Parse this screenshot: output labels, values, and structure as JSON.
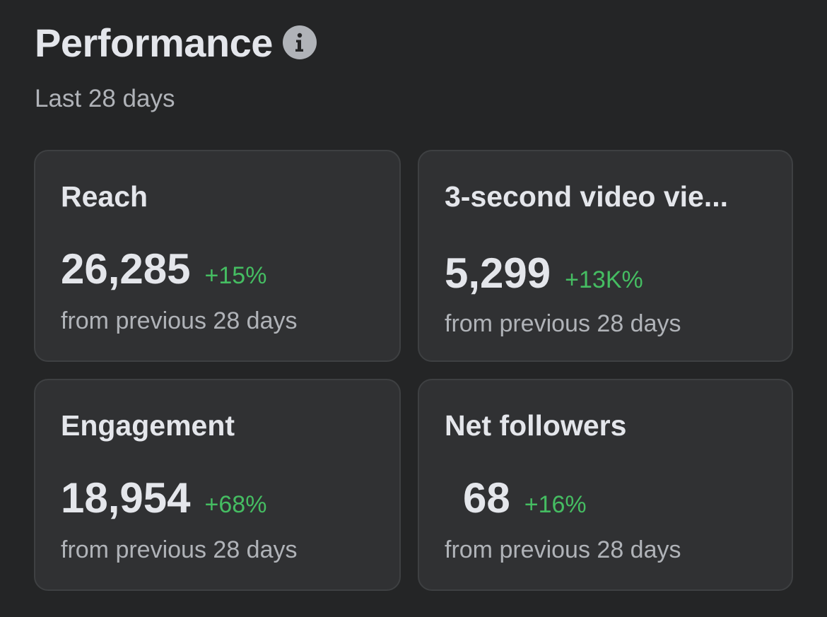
{
  "header": {
    "title": "Performance",
    "info_icon": "info-icon",
    "subtitle": "Last 28 days"
  },
  "colors": {
    "background": "#242526",
    "card": "#303133",
    "positive": "#45bd62"
  },
  "cards": [
    {
      "label": "Reach",
      "value": "26,285",
      "change": "+15%",
      "caption": "from previous 28 days"
    },
    {
      "label": "3-second video vie...",
      "value": "5,299",
      "change": "+13K%",
      "caption": "from previous 28 days"
    },
    {
      "label": "Engagement",
      "value": "18,954",
      "change": "+68%",
      "caption": "from previous 28 days"
    },
    {
      "label": "Net followers",
      "value": "68",
      "change": "+16%",
      "caption": "from previous 28 days"
    }
  ]
}
